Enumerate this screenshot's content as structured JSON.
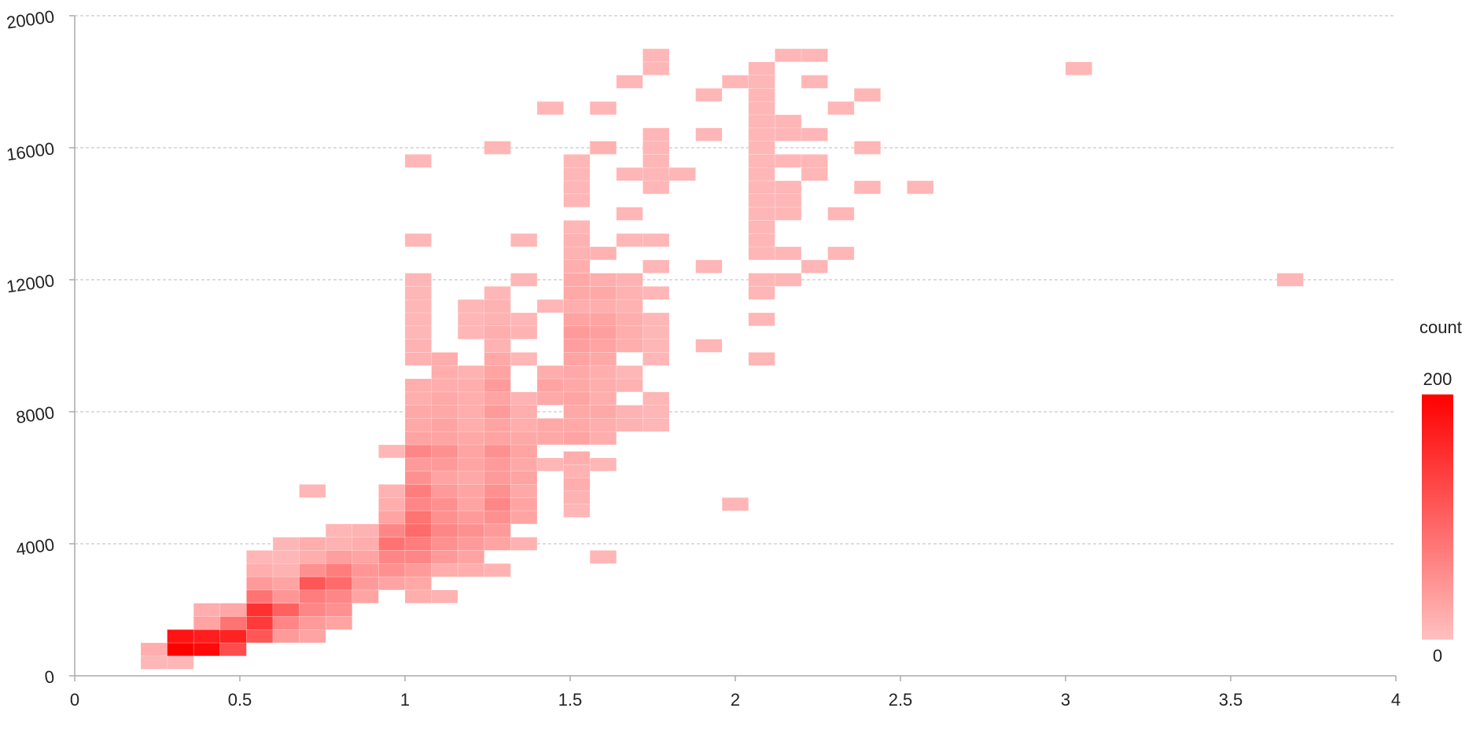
{
  "chart_data": {
    "type": "heatmap",
    "title": "",
    "xlabel": "",
    "ylabel": "",
    "xlim": [
      0,
      4
    ],
    "ylim": [
      0,
      20000
    ],
    "x_ticks": [
      "0",
      "0.5",
      "1",
      "1.5",
      "2",
      "2.5",
      "3",
      "3.5",
      "4"
    ],
    "y_ticks": [
      "0",
      "4000",
      "8000",
      "12000",
      "16000",
      "20000"
    ],
    "grid": "horizontal-dashed",
    "bin_width_x": 0.08,
    "bin_height_y": 400,
    "legend": {
      "title": "count",
      "min_label": "0",
      "max_label": "200",
      "min": 0,
      "max": 200,
      "placement": "right"
    },
    "colors": {
      "low": "#ffc0c0",
      "high": "#ff0000",
      "axis": "#aaaaaa",
      "grid": "#bbbbbb"
    },
    "cells": [
      [
        0.2,
        0.2,
        10
      ],
      [
        0.2,
        0.6,
        20
      ],
      [
        0.28,
        0.2,
        10
      ],
      [
        0.28,
        0.6,
        200
      ],
      [
        0.28,
        1.0,
        180
      ],
      [
        0.36,
        0.6,
        190
      ],
      [
        0.36,
        1.0,
        170
      ],
      [
        0.36,
        1.4,
        30
      ],
      [
        0.36,
        1.8,
        20
      ],
      [
        0.44,
        0.6,
        120
      ],
      [
        0.44,
        1.0,
        165
      ],
      [
        0.44,
        1.4,
        80
      ],
      [
        0.44,
        1.8,
        25
      ],
      [
        0.52,
        1.0,
        110
      ],
      [
        0.52,
        1.4,
        140
      ],
      [
        0.52,
        1.8,
        150
      ],
      [
        0.52,
        2.2,
        80
      ],
      [
        0.52,
        2.6,
        40
      ],
      [
        0.52,
        3.0,
        20
      ],
      [
        0.52,
        3.4,
        10
      ],
      [
        0.6,
        1.0,
        40
      ],
      [
        0.6,
        1.4,
        60
      ],
      [
        0.6,
        1.8,
        100
      ],
      [
        0.6,
        2.2,
        45
      ],
      [
        0.6,
        2.6,
        30
      ],
      [
        0.6,
        3.0,
        15
      ],
      [
        0.6,
        3.4,
        10
      ],
      [
        0.6,
        3.8,
        10
      ],
      [
        0.68,
        1.0,
        30
      ],
      [
        0.68,
        1.4,
        40
      ],
      [
        0.68,
        1.8,
        60
      ],
      [
        0.68,
        2.2,
        70
      ],
      [
        0.68,
        2.6,
        110
      ],
      [
        0.68,
        3.0,
        50
      ],
      [
        0.68,
        3.4,
        20
      ],
      [
        0.68,
        3.8,
        20
      ],
      [
        0.68,
        5.4,
        10
      ],
      [
        0.76,
        1.4,
        30
      ],
      [
        0.76,
        1.8,
        50
      ],
      [
        0.76,
        2.2,
        60
      ],
      [
        0.76,
        2.6,
        90
      ],
      [
        0.76,
        3.0,
        70
      ],
      [
        0.76,
        3.4,
        35
      ],
      [
        0.76,
        3.8,
        15
      ],
      [
        0.76,
        4.2,
        10
      ],
      [
        0.84,
        2.2,
        30
      ],
      [
        0.84,
        2.6,
        40
      ],
      [
        0.84,
        3.0,
        45
      ],
      [
        0.84,
        3.4,
        30
      ],
      [
        0.84,
        3.8,
        20
      ],
      [
        0.84,
        4.2,
        15
      ],
      [
        0.92,
        2.6,
        30
      ],
      [
        0.92,
        3.0,
        50
      ],
      [
        0.92,
        3.4,
        60
      ],
      [
        0.92,
        3.8,
        80
      ],
      [
        0.92,
        4.2,
        60
      ],
      [
        0.92,
        4.6,
        30
      ],
      [
        0.92,
        5.0,
        20
      ],
      [
        0.92,
        5.4,
        15
      ],
      [
        0.92,
        6.6,
        10
      ],
      [
        1.0,
        2.2,
        20
      ],
      [
        1.0,
        2.6,
        25
      ],
      [
        1.0,
        3.0,
        40
      ],
      [
        1.0,
        3.4,
        60
      ],
      [
        1.0,
        3.8,
        70
      ],
      [
        1.0,
        4.2,
        90
      ],
      [
        1.0,
        4.6,
        80
      ],
      [
        1.0,
        5.0,
        60
      ],
      [
        1.0,
        5.4,
        70
      ],
      [
        1.0,
        5.8,
        50
      ],
      [
        1.0,
        6.2,
        40
      ],
      [
        1.0,
        6.6,
        60
      ],
      [
        1.0,
        7.0,
        30
      ],
      [
        1.0,
        7.4,
        25
      ],
      [
        1.0,
        7.8,
        25
      ],
      [
        1.0,
        8.2,
        20
      ],
      [
        1.0,
        8.6,
        20
      ],
      [
        1.0,
        9.4,
        15
      ],
      [
        1.0,
        9.8,
        15
      ],
      [
        1.0,
        10.2,
        10
      ],
      [
        1.0,
        10.6,
        10
      ],
      [
        1.0,
        11.0,
        10
      ],
      [
        1.0,
        11.4,
        10
      ],
      [
        1.0,
        11.8,
        10
      ],
      [
        1.0,
        13.0,
        10
      ],
      [
        1.0,
        15.4,
        10
      ],
      [
        1.08,
        2.2,
        15
      ],
      [
        1.08,
        3.0,
        20
      ],
      [
        1.08,
        3.4,
        40
      ],
      [
        1.08,
        3.8,
        50
      ],
      [
        1.08,
        4.2,
        60
      ],
      [
        1.08,
        4.6,
        50
      ],
      [
        1.08,
        5.0,
        50
      ],
      [
        1.08,
        5.4,
        40
      ],
      [
        1.08,
        5.8,
        30
      ],
      [
        1.08,
        6.2,
        40
      ],
      [
        1.08,
        6.6,
        50
      ],
      [
        1.08,
        7.0,
        30
      ],
      [
        1.08,
        7.4,
        30
      ],
      [
        1.08,
        7.8,
        25
      ],
      [
        1.08,
        8.2,
        25
      ],
      [
        1.08,
        8.6,
        20
      ],
      [
        1.08,
        9.0,
        20
      ],
      [
        1.08,
        9.4,
        20
      ],
      [
        1.16,
        3.0,
        20
      ],
      [
        1.16,
        3.4,
        30
      ],
      [
        1.16,
        3.8,
        40
      ],
      [
        1.16,
        4.2,
        50
      ],
      [
        1.16,
        4.6,
        40
      ],
      [
        1.16,
        5.0,
        30
      ],
      [
        1.16,
        5.4,
        30
      ],
      [
        1.16,
        5.8,
        25
      ],
      [
        1.16,
        6.2,
        30
      ],
      [
        1.16,
        6.6,
        30
      ],
      [
        1.16,
        7.0,
        25
      ],
      [
        1.16,
        7.4,
        20
      ],
      [
        1.16,
        7.8,
        20
      ],
      [
        1.16,
        8.2,
        20
      ],
      [
        1.16,
        8.6,
        20
      ],
      [
        1.16,
        9.0,
        15
      ],
      [
        1.16,
        10.2,
        10
      ],
      [
        1.16,
        10.6,
        10
      ],
      [
        1.16,
        11.0,
        10
      ],
      [
        1.24,
        3.0,
        15
      ],
      [
        1.24,
        3.8,
        30
      ],
      [
        1.24,
        4.2,
        40
      ],
      [
        1.24,
        4.6,
        50
      ],
      [
        1.24,
        5.0,
        60
      ],
      [
        1.24,
        5.4,
        50
      ],
      [
        1.24,
        5.8,
        40
      ],
      [
        1.24,
        6.2,
        40
      ],
      [
        1.24,
        6.6,
        50
      ],
      [
        1.24,
        7.0,
        30
      ],
      [
        1.24,
        7.4,
        30
      ],
      [
        1.24,
        7.8,
        40
      ],
      [
        1.24,
        8.2,
        30
      ],
      [
        1.24,
        8.6,
        40
      ],
      [
        1.24,
        9.0,
        30
      ],
      [
        1.24,
        9.4,
        25
      ],
      [
        1.24,
        9.8,
        15
      ],
      [
        1.24,
        10.2,
        20
      ],
      [
        1.24,
        10.6,
        15
      ],
      [
        1.24,
        11.0,
        15
      ],
      [
        1.24,
        11.4,
        10
      ],
      [
        1.24,
        15.8,
        10
      ],
      [
        1.32,
        3.8,
        15
      ],
      [
        1.32,
        4.6,
        30
      ],
      [
        1.32,
        5.0,
        30
      ],
      [
        1.32,
        5.4,
        25
      ],
      [
        1.32,
        5.8,
        30
      ],
      [
        1.32,
        6.2,
        25
      ],
      [
        1.32,
        6.6,
        30
      ],
      [
        1.32,
        7.0,
        25
      ],
      [
        1.32,
        7.4,
        20
      ],
      [
        1.32,
        7.8,
        20
      ],
      [
        1.32,
        8.2,
        15
      ],
      [
        1.32,
        9.4,
        10
      ],
      [
        1.32,
        10.2,
        15
      ],
      [
        1.32,
        10.6,
        10
      ],
      [
        1.32,
        11.8,
        10
      ],
      [
        1.32,
        13.0,
        10
      ],
      [
        1.4,
        6.2,
        10
      ],
      [
        1.4,
        7.0,
        25
      ],
      [
        1.4,
        7.4,
        25
      ],
      [
        1.4,
        8.2,
        25
      ],
      [
        1.4,
        8.6,
        30
      ],
      [
        1.4,
        9.0,
        20
      ],
      [
        1.4,
        11.0,
        10
      ],
      [
        1.4,
        17.0,
        10
      ],
      [
        1.48,
        4.8,
        10
      ],
      [
        1.48,
        5.2,
        15
      ],
      [
        1.48,
        5.6,
        20
      ],
      [
        1.48,
        6.0,
        15
      ],
      [
        1.48,
        6.4,
        20
      ],
      [
        1.48,
        7.0,
        30
      ],
      [
        1.48,
        7.4,
        25
      ],
      [
        1.48,
        7.8,
        25
      ],
      [
        1.48,
        8.2,
        30
      ],
      [
        1.48,
        8.6,
        25
      ],
      [
        1.48,
        9.0,
        25
      ],
      [
        1.48,
        9.4,
        30
      ],
      [
        1.48,
        9.8,
        35
      ],
      [
        1.48,
        10.2,
        40
      ],
      [
        1.48,
        10.6,
        30
      ],
      [
        1.48,
        11.0,
        20
      ],
      [
        1.48,
        11.4,
        25
      ],
      [
        1.48,
        11.8,
        25
      ],
      [
        1.48,
        12.2,
        20
      ],
      [
        1.48,
        12.6,
        15
      ],
      [
        1.48,
        13.0,
        15
      ],
      [
        1.48,
        13.4,
        10
      ],
      [
        1.48,
        14.2,
        10
      ],
      [
        1.48,
        14.6,
        10
      ],
      [
        1.48,
        15.0,
        10
      ],
      [
        1.48,
        15.4,
        10
      ],
      [
        1.56,
        3.4,
        10
      ],
      [
        1.56,
        6.2,
        10
      ],
      [
        1.56,
        7.0,
        20
      ],
      [
        1.56,
        7.4,
        20
      ],
      [
        1.56,
        7.8,
        25
      ],
      [
        1.56,
        8.2,
        20
      ],
      [
        1.56,
        8.6,
        20
      ],
      [
        1.56,
        9.0,
        20
      ],
      [
        1.56,
        9.4,
        25
      ],
      [
        1.56,
        9.8,
        30
      ],
      [
        1.56,
        10.2,
        35
      ],
      [
        1.56,
        10.6,
        30
      ],
      [
        1.56,
        11.0,
        20
      ],
      [
        1.56,
        11.4,
        25
      ],
      [
        1.56,
        11.8,
        20
      ],
      [
        1.56,
        12.6,
        15
      ],
      [
        1.56,
        15.8,
        15
      ],
      [
        1.56,
        17.0,
        10
      ],
      [
        1.64,
        7.4,
        15
      ],
      [
        1.64,
        7.8,
        15
      ],
      [
        1.64,
        8.6,
        15
      ],
      [
        1.64,
        9.0,
        10
      ],
      [
        1.64,
        9.8,
        20
      ],
      [
        1.64,
        10.2,
        20
      ],
      [
        1.64,
        10.6,
        20
      ],
      [
        1.64,
        11.0,
        15
      ],
      [
        1.64,
        11.4,
        15
      ],
      [
        1.64,
        11.8,
        15
      ],
      [
        1.64,
        13.0,
        10
      ],
      [
        1.64,
        13.8,
        10
      ],
      [
        1.64,
        15.0,
        10
      ],
      [
        1.64,
        17.8,
        10
      ],
      [
        1.72,
        7.4,
        10
      ],
      [
        1.72,
        7.8,
        10
      ],
      [
        1.72,
        8.2,
        10
      ],
      [
        1.72,
        9.4,
        10
      ],
      [
        1.72,
        9.8,
        10
      ],
      [
        1.72,
        10.2,
        10
      ],
      [
        1.72,
        10.6,
        10
      ],
      [
        1.72,
        11.4,
        10
      ],
      [
        1.72,
        12.2,
        10
      ],
      [
        1.72,
        13.0,
        10
      ],
      [
        1.72,
        14.6,
        10
      ],
      [
        1.72,
        15.0,
        10
      ],
      [
        1.72,
        15.4,
        10
      ],
      [
        1.72,
        15.8,
        10
      ],
      [
        1.72,
        16.2,
        10
      ],
      [
        1.72,
        18.2,
        10
      ],
      [
        1.72,
        18.6,
        10
      ],
      [
        1.8,
        15.0,
        10
      ],
      [
        1.88,
        9.8,
        10
      ],
      [
        1.88,
        12.2,
        10
      ],
      [
        1.88,
        16.2,
        10
      ],
      [
        1.88,
        17.4,
        10
      ],
      [
        1.96,
        5.0,
        10
      ],
      [
        1.96,
        17.8,
        10
      ],
      [
        2.04,
        9.4,
        10
      ],
      [
        2.04,
        10.6,
        10
      ],
      [
        2.04,
        11.4,
        10
      ],
      [
        2.04,
        11.8,
        10
      ],
      [
        2.04,
        12.6,
        10
      ],
      [
        2.04,
        13.0,
        10
      ],
      [
        2.04,
        13.4,
        10
      ],
      [
        2.04,
        13.8,
        10
      ],
      [
        2.04,
        14.2,
        10
      ],
      [
        2.04,
        14.6,
        10
      ],
      [
        2.04,
        15.0,
        10
      ],
      [
        2.04,
        15.4,
        10
      ],
      [
        2.04,
        15.8,
        10
      ],
      [
        2.04,
        16.2,
        10
      ],
      [
        2.04,
        16.6,
        10
      ],
      [
        2.04,
        17.0,
        10
      ],
      [
        2.04,
        17.4,
        10
      ],
      [
        2.04,
        17.8,
        10
      ],
      [
        2.04,
        18.2,
        10
      ],
      [
        2.12,
        11.8,
        10
      ],
      [
        2.12,
        12.6,
        10
      ],
      [
        2.12,
        13.8,
        10
      ],
      [
        2.12,
        14.2,
        10
      ],
      [
        2.12,
        14.6,
        10
      ],
      [
        2.12,
        15.4,
        10
      ],
      [
        2.12,
        16.2,
        10
      ],
      [
        2.12,
        16.6,
        10
      ],
      [
        2.12,
        18.6,
        10
      ],
      [
        2.2,
        12.2,
        10
      ],
      [
        2.2,
        15.0,
        10
      ],
      [
        2.2,
        15.4,
        10
      ],
      [
        2.2,
        16.2,
        10
      ],
      [
        2.2,
        17.8,
        10
      ],
      [
        2.2,
        18.6,
        10
      ],
      [
        2.28,
        12.6,
        10
      ],
      [
        2.28,
        13.8,
        10
      ],
      [
        2.28,
        17.0,
        10
      ],
      [
        2.36,
        14.6,
        10
      ],
      [
        2.36,
        15.8,
        10
      ],
      [
        2.36,
        17.4,
        10
      ],
      [
        2.52,
        14.6,
        10
      ],
      [
        3.0,
        18.2,
        10
      ],
      [
        3.64,
        11.8,
        10
      ]
    ]
  }
}
